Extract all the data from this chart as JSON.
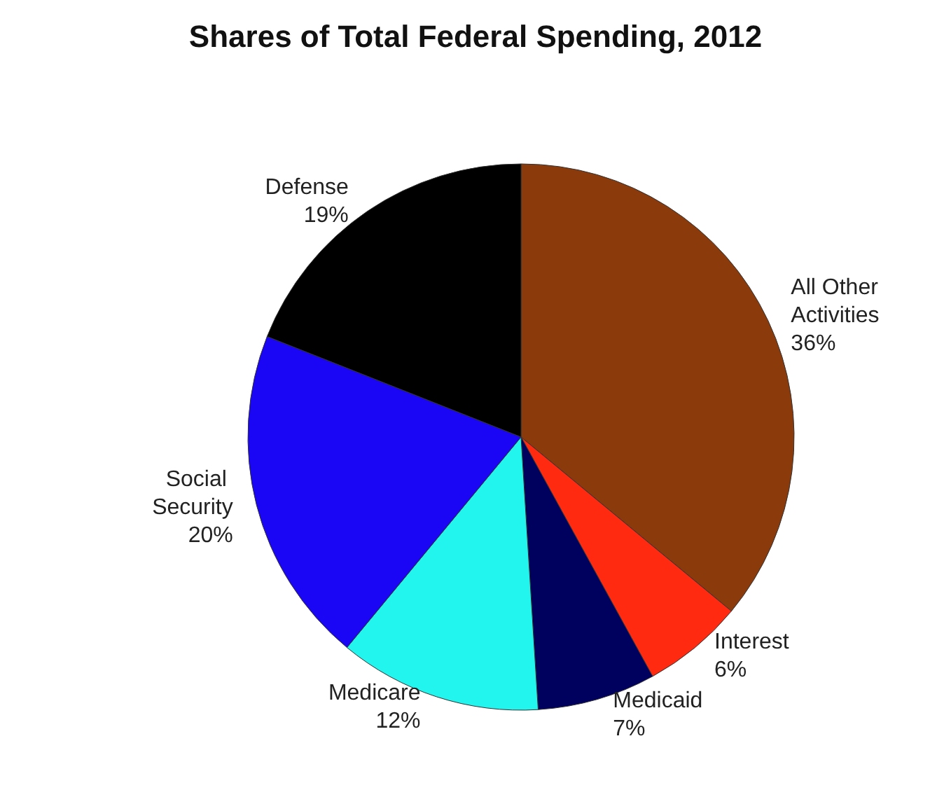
{
  "chart_data": {
    "type": "pie",
    "title": "Shares of Total Federal Spending, 2012",
    "categories": [
      "All Other Activities",
      "Interest",
      "Medicaid",
      "Medicare",
      "Social Security",
      "Defense"
    ],
    "values": [
      36,
      6,
      7,
      12,
      20,
      19
    ],
    "value_labels": [
      "36%",
      "6%",
      "7%",
      "12%",
      "20%",
      "19%"
    ],
    "colors": [
      "#8b3a0c",
      "#ff2a10",
      "#00005e",
      "#22f5ee",
      "#1a06f5",
      "#000000"
    ],
    "legend": false
  }
}
